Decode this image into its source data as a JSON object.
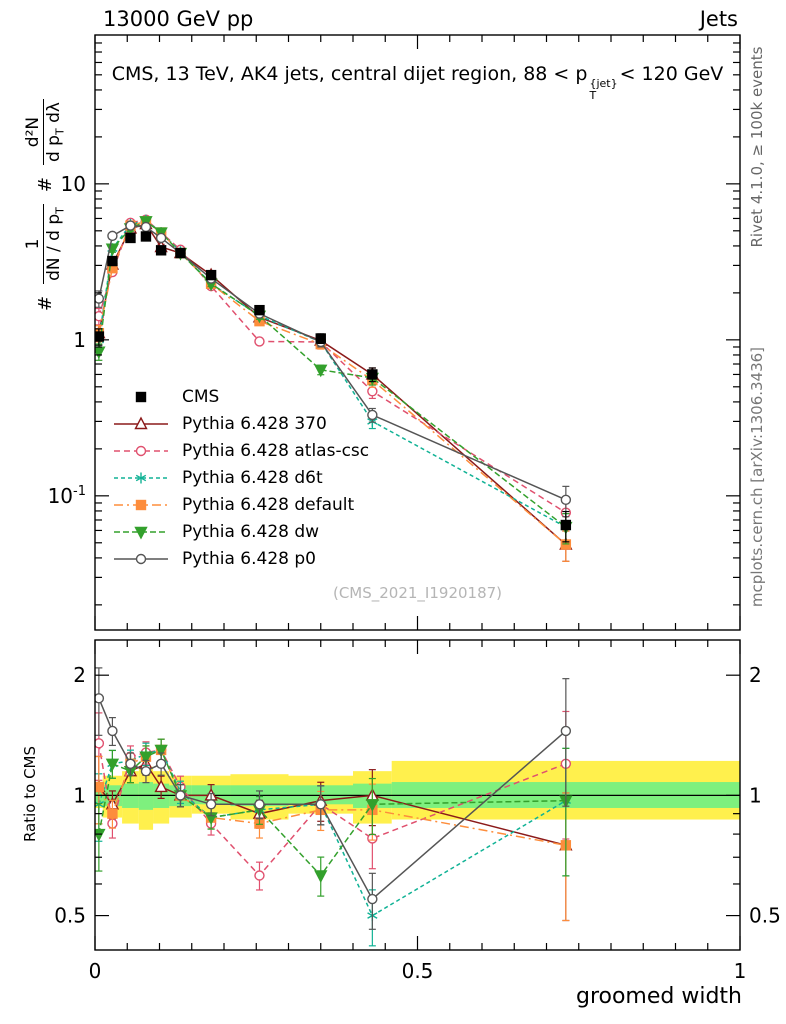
{
  "header": {
    "left": "13000 GeV pp",
    "right": "Jets"
  },
  "title": {
    "prefix": "CMS, 13 TeV, AK4 jets, central dijet region, 88 < p",
    "sup": "{jet}",
    "sub": "T",
    "suffix": "< 120 GeV"
  },
  "axes": {
    "x_label": "groomed width",
    "ratio_y_label": "Ratio to CMS",
    "main_y_label": {
      "hash": "#",
      "frac1_num": "1",
      "frac1_den_main": "dN / d p",
      "frac1_den_sub": "T",
      "frac2_num": "d²N",
      "frac2_den_main": "d p",
      "frac2_den_sub": "T",
      "frac2_den_tail": " dλ"
    }
  },
  "side_captions": {
    "top_right": "Rivet 4.1.0, ≥ 100k events",
    "bottom_right": "mcplots.cern.ch [arXiv:1306.3436]"
  },
  "watermark": "(CMS_2021_I1920187)",
  "chart_data": {
    "type": "line",
    "x_label": "groomed width",
    "xlim": [
      0,
      1
    ],
    "x_major_ticks": [
      0,
      0.5,
      1
    ],
    "x_major_labels": [
      "0",
      "0.5",
      "1"
    ],
    "x_minor_step": 0.05,
    "main": {
      "ylog": true,
      "ylim": [
        0.0138,
        90
      ],
      "yticks": [
        {
          "v": 10,
          "label": "10",
          "sup": ""
        },
        {
          "v": 1,
          "label": "1",
          "sup": ""
        },
        {
          "v": 0.1,
          "label": "10",
          "sup": "-1"
        }
      ]
    },
    "ratio": {
      "ylog": true,
      "ylim": [
        0.41,
        2.45
      ],
      "ref_line": 1,
      "yticks": [
        {
          "v": 2,
          "label": "2"
        },
        {
          "v": 1,
          "label": "1"
        },
        {
          "v": 0.5,
          "label": "0.5"
        }
      ]
    },
    "bin_edges": [
      0,
      0.012,
      0.042,
      0.068,
      0.09,
      0.115,
      0.15,
      0.21,
      0.3,
      0.4,
      0.46,
      1.0
    ],
    "x": [
      0.006,
      0.027,
      0.055,
      0.079,
      0.1025,
      0.1325,
      0.18,
      0.255,
      0.35,
      0.43,
      0.73
    ],
    "rel_err": [
      0.12,
      0.05,
      0.04,
      0.04,
      0.04,
      0.04,
      0.04,
      0.05,
      0.07,
      0.1,
      0.22
    ],
    "cms": {
      "name": "CMS",
      "color": "#000000",
      "marker": "square",
      "filled": true,
      "values": [
        1.05,
        3.2,
        4.5,
        4.6,
        3.75,
        3.6,
        2.6,
        1.55,
        1.02,
        0.6,
        0.065
      ]
    },
    "bands": {
      "yellow": {
        "color": "#fff04d",
        "lo": [
          0.93,
          0.88,
          0.85,
          0.82,
          0.85,
          0.88,
          0.9,
          0.87,
          0.9,
          0.85,
          0.87
        ],
        "hi": [
          1.07,
          1.12,
          1.15,
          1.18,
          1.15,
          1.12,
          1.12,
          1.13,
          1.12,
          1.15,
          1.22
        ]
      },
      "green": {
        "color": "#7ef07e",
        "lo": [
          0.96,
          0.94,
          0.93,
          0.92,
          0.93,
          0.94,
          0.95,
          0.94,
          0.95,
          0.93,
          0.93
        ],
        "hi": [
          1.04,
          1.06,
          1.07,
          1.08,
          1.07,
          1.06,
          1.06,
          1.06,
          1.06,
          1.07,
          1.08
        ]
      }
    },
    "series": [
      {
        "name": "Pythia 6.428 370",
        "color": "#8b1a1a",
        "marker": "triangle-up",
        "filled": false,
        "dash": "",
        "ratio": [
          1.05,
          0.95,
          1.15,
          1.2,
          1.05,
          1.0,
          1.0,
          0.9,
          0.97,
          1.0,
          0.75
        ]
      },
      {
        "name": "Pythia 6.428 atlas-csc",
        "color": "#e0506e",
        "marker": "circle",
        "filled": false,
        "dash": "6,4",
        "ratio": [
          1.35,
          0.85,
          1.25,
          1.28,
          1.3,
          1.05,
          0.85,
          0.63,
          0.95,
          0.78,
          1.2
        ]
      },
      {
        "name": "Pythia 6.428 d6t",
        "color": "#10b295",
        "marker": "asterisk",
        "filled": false,
        "dash": "4,3",
        "ratio": [
          0.95,
          1.2,
          1.22,
          1.27,
          1.3,
          1.02,
          0.88,
          0.92,
          0.95,
          0.5,
          0.97
        ]
      },
      {
        "name": "Pythia 6.428 default",
        "color": "#fd8d3c",
        "marker": "square",
        "filled": true,
        "dash": "9,4,2,4",
        "ratio": [
          1.05,
          0.9,
          1.2,
          1.25,
          1.3,
          1.0,
          0.88,
          0.85,
          0.92,
          0.92,
          0.75
        ]
      },
      {
        "name": "Pythia 6.428 dw",
        "color": "#33a02c",
        "marker": "triangle-down",
        "filled": true,
        "dash": "6,3",
        "ratio": [
          0.8,
          1.2,
          1.15,
          1.25,
          1.3,
          1.0,
          0.88,
          0.92,
          0.63,
          0.95,
          0.97
        ]
      },
      {
        "name": "Pythia 6.428 p0",
        "color": "#555555",
        "marker": "circle",
        "filled": false,
        "dash": "",
        "ratio": [
          1.75,
          1.45,
          1.2,
          1.15,
          1.2,
          1.0,
          0.95,
          0.95,
          0.95,
          0.55,
          1.45
        ]
      }
    ]
  }
}
